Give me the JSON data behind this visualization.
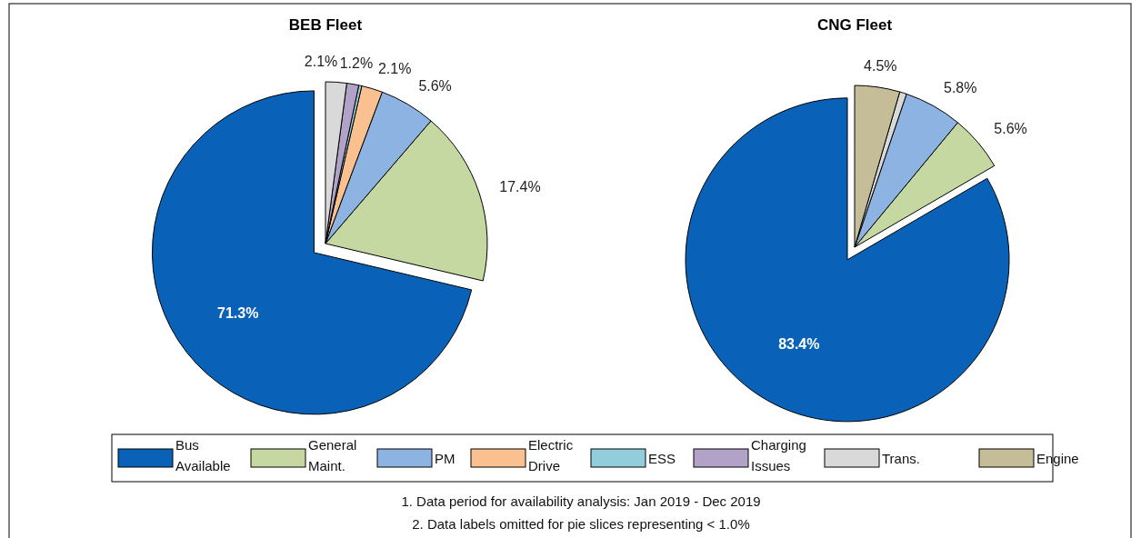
{
  "chart_data": [
    {
      "type": "pie",
      "title": "BEB Fleet",
      "categories": [
        "Bus Available",
        "General Maint.",
        "PM",
        "Electric Drive",
        "ESS",
        "Charging Issues",
        "Trans.",
        "Engine"
      ],
      "values": [
        71.3,
        17.4,
        5.6,
        2.1,
        0.3,
        1.2,
        2.1,
        0
      ],
      "value_labels": [
        "71.3%",
        "17.4%",
        "5.6%",
        "2.1%",
        null,
        "1.2%",
        "2.1%",
        null
      ],
      "colors": [
        "#0a62b8",
        "#c5d8a1",
        "#8db3e2",
        "#fac090",
        "#92cddc",
        "#b3a2c7",
        "#d9d9d9",
        "#c4bd97"
      ],
      "legend": "bottom",
      "annotations": [
        "1. Data period for availability analysis: Jan 2019 - Dec 2019",
        "2. Data labels omitted for pie slices representing < 1.0%"
      ]
    },
    {
      "type": "pie",
      "title": "CNG Fleet",
      "categories": [
        null,
        null,
        null,
        null,
        null
      ],
      "values": [
        83.4,
        5.6,
        5.8,
        0.7,
        4.5
      ],
      "value_labels": [
        "83.4%",
        "5.6%",
        "5.8%",
        null,
        "4.5%"
      ],
      "colors": [
        "#0a62b8",
        "#c5d8a1",
        "#8db3e2",
        "#d9d9d9",
        "#c4bd97"
      ]
    }
  ]
}
